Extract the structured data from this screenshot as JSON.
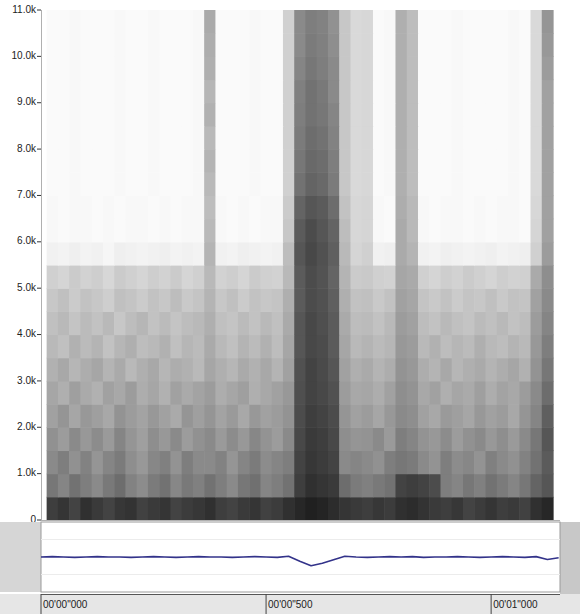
{
  "chart_data": [
    {
      "type": "heatmap",
      "color": "#141414",
      "tick_labels": "y",
      "xlim": [
        0,
        1.153
      ],
      "ylim": [
        0,
        11000
      ],
      "yticks": [
        0,
        {
          "value": 1000,
          "label": "1.0k"
        },
        {
          "value": 2000,
          "label": "2.0k"
        },
        {
          "value": 3000,
          "label": "3.0k"
        },
        {
          "value": 4000,
          "label": "4.0k"
        },
        {
          "value": 5000,
          "label": "5.0k"
        },
        {
          "value": 6000,
          "label": "6.0k"
        },
        {
          "value": 7000,
          "label": "7.0k"
        },
        {
          "value": 8000,
          "label": "8.0k"
        },
        {
          "value": 9000,
          "label": "9.0k"
        },
        {
          "value": 10000,
          "label": "10.0k"
        },
        {
          "value": 11000,
          "label": "11.0k"
        }
      ],
      "x": [
        0.025,
        0.05,
        0.075,
        0.1,
        0.125,
        0.15,
        0.175,
        0.2,
        0.225,
        0.25,
        0.275,
        0.3,
        0.325,
        0.35,
        0.375,
        0.4,
        0.425,
        0.45,
        0.475,
        0.5,
        0.525,
        0.55,
        0.575,
        0.6,
        0.625,
        0.65,
        0.675,
        0.7,
        0.725,
        0.75,
        0.775,
        0.8,
        0.825,
        0.85,
        0.875,
        0.9,
        0.925,
        0.95,
        0.975,
        1.0,
        1.025,
        1.05,
        1.075,
        1.1,
        1.125
      ],
      "y": [
        250,
        750,
        1250,
        1750,
        2250,
        2750,
        3250,
        3750,
        4250,
        4750,
        5250,
        5750,
        6250,
        6750,
        7250,
        7750,
        8250,
        8750,
        9250,
        9750,
        10250,
        10750
      ],
      "values": [
        [
          0.82,
          0.86,
          0.8,
          0.88,
          0.84,
          0.8,
          0.85,
          0.87,
          0.81,
          0.84,
          0.86,
          0.8,
          0.83,
          0.85,
          0.88,
          0.82,
          0.8,
          0.84,
          0.86,
          0.81,
          0.83,
          0.88,
          0.92,
          0.95,
          0.93,
          0.9,
          0.86,
          0.84,
          0.82,
          0.85,
          0.83,
          0.88,
          0.9,
          0.87,
          0.84,
          0.82,
          0.85,
          0.8,
          0.83,
          0.86,
          0.82,
          0.84,
          0.81,
          0.88,
          0.92
        ],
        [
          0.58,
          0.52,
          0.6,
          0.55,
          0.5,
          0.57,
          0.62,
          0.53,
          0.49,
          0.56,
          0.6,
          0.51,
          0.57,
          0.54,
          0.6,
          0.55,
          0.5,
          0.58,
          0.61,
          0.52,
          0.55,
          0.6,
          0.82,
          0.88,
          0.86,
          0.84,
          0.62,
          0.56,
          0.54,
          0.57,
          0.6,
          0.8,
          0.82,
          0.8,
          0.76,
          0.55,
          0.52,
          0.58,
          0.54,
          0.6,
          0.56,
          0.52,
          0.58,
          0.66,
          0.72
        ],
        [
          0.5,
          0.55,
          0.47,
          0.53,
          0.45,
          0.52,
          0.56,
          0.48,
          0.44,
          0.51,
          0.54,
          0.46,
          0.55,
          0.5,
          0.5,
          0.53,
          0.45,
          0.52,
          0.56,
          0.49,
          0.52,
          0.55,
          0.8,
          0.85,
          0.83,
          0.8,
          0.5,
          0.52,
          0.5,
          0.47,
          0.55,
          0.58,
          0.56,
          0.5,
          0.46,
          0.55,
          0.49,
          0.51,
          0.46,
          0.54,
          0.5,
          0.47,
          0.53,
          0.6,
          0.7
        ],
        [
          0.47,
          0.42,
          0.5,
          0.44,
          0.49,
          0.43,
          0.52,
          0.45,
          0.41,
          0.48,
          0.44,
          0.5,
          0.42,
          0.47,
          0.5,
          0.43,
          0.49,
          0.44,
          0.51,
          0.46,
          0.42,
          0.5,
          0.78,
          0.84,
          0.82,
          0.78,
          0.48,
          0.45,
          0.46,
          0.5,
          0.43,
          0.55,
          0.52,
          0.46,
          0.44,
          0.49,
          0.42,
          0.47,
          0.5,
          0.44,
          0.48,
          0.43,
          0.5,
          0.58,
          0.72
        ],
        [
          0.4,
          0.45,
          0.38,
          0.44,
          0.41,
          0.37,
          0.46,
          0.42,
          0.39,
          0.44,
          0.4,
          0.36,
          0.45,
          0.41,
          0.45,
          0.39,
          0.43,
          0.37,
          0.44,
          0.4,
          0.42,
          0.46,
          0.76,
          0.82,
          0.8,
          0.76,
          0.45,
          0.4,
          0.42,
          0.38,
          0.44,
          0.5,
          0.48,
          0.4,
          0.37,
          0.43,
          0.41,
          0.38,
          0.44,
          0.4,
          0.42,
          0.37,
          0.45,
          0.52,
          0.68
        ],
        [
          0.38,
          0.34,
          0.41,
          0.36,
          0.33,
          0.4,
          0.37,
          0.42,
          0.35,
          0.38,
          0.33,
          0.4,
          0.36,
          0.39,
          0.42,
          0.35,
          0.38,
          0.41,
          0.34,
          0.37,
          0.4,
          0.44,
          0.75,
          0.8,
          0.78,
          0.74,
          0.42,
          0.37,
          0.38,
          0.35,
          0.4,
          0.48,
          0.46,
          0.37,
          0.4,
          0.34,
          0.38,
          0.36,
          0.41,
          0.35,
          0.39,
          0.37,
          0.42,
          0.5,
          0.62
        ],
        [
          0.33,
          0.37,
          0.31,
          0.35,
          0.38,
          0.32,
          0.36,
          0.3,
          0.34,
          0.37,
          0.31,
          0.35,
          0.33,
          0.3,
          0.38,
          0.34,
          0.31,
          0.36,
          0.33,
          0.37,
          0.32,
          0.4,
          0.74,
          0.8,
          0.77,
          0.72,
          0.4,
          0.34,
          0.36,
          0.32,
          0.35,
          0.46,
          0.44,
          0.35,
          0.32,
          0.37,
          0.31,
          0.34,
          0.36,
          0.32,
          0.35,
          0.38,
          0.33,
          0.46,
          0.58
        ],
        [
          0.3,
          0.27,
          0.33,
          0.29,
          0.32,
          0.26,
          0.31,
          0.34,
          0.28,
          0.3,
          0.33,
          0.27,
          0.31,
          0.29,
          0.36,
          0.3,
          0.27,
          0.32,
          0.29,
          0.33,
          0.28,
          0.38,
          0.72,
          0.78,
          0.76,
          0.7,
          0.38,
          0.3,
          0.32,
          0.29,
          0.31,
          0.44,
          0.42,
          0.3,
          0.33,
          0.28,
          0.31,
          0.29,
          0.34,
          0.3,
          0.28,
          0.32,
          0.3,
          0.44,
          0.55
        ],
        [
          0.27,
          0.3,
          0.25,
          0.29,
          0.26,
          0.3,
          0.24,
          0.28,
          0.31,
          0.26,
          0.29,
          0.25,
          0.28,
          0.3,
          0.34,
          0.27,
          0.25,
          0.29,
          0.26,
          0.3,
          0.27,
          0.36,
          0.72,
          0.78,
          0.75,
          0.7,
          0.36,
          0.28,
          0.29,
          0.26,
          0.3,
          0.42,
          0.4,
          0.28,
          0.26,
          0.3,
          0.27,
          0.25,
          0.29,
          0.27,
          0.3,
          0.26,
          0.28,
          0.42,
          0.52
        ],
        [
          0.24,
          0.27,
          0.22,
          0.26,
          0.24,
          0.21,
          0.27,
          0.25,
          0.22,
          0.26,
          0.24,
          0.28,
          0.23,
          0.25,
          0.32,
          0.24,
          0.27,
          0.22,
          0.26,
          0.24,
          0.25,
          0.34,
          0.7,
          0.76,
          0.74,
          0.68,
          0.34,
          0.26,
          0.27,
          0.23,
          0.26,
          0.4,
          0.38,
          0.25,
          0.23,
          0.26,
          0.22,
          0.25,
          0.24,
          0.27,
          0.23,
          0.26,
          0.25,
          0.4,
          0.5
        ],
        [
          0.2,
          0.18,
          0.22,
          0.19,
          0.21,
          0.17,
          0.22,
          0.2,
          0.18,
          0.21,
          0.19,
          0.22,
          0.18,
          0.2,
          0.3,
          0.19,
          0.21,
          0.18,
          0.22,
          0.2,
          0.19,
          0.3,
          0.7,
          0.76,
          0.73,
          0.66,
          0.32,
          0.22,
          0.23,
          0.2,
          0.19,
          0.38,
          0.36,
          0.2,
          0.18,
          0.21,
          0.19,
          0.22,
          0.2,
          0.18,
          0.21,
          0.19,
          0.2,
          0.36,
          0.48
        ],
        [
          0.06,
          0.05,
          0.07,
          0.05,
          0.06,
          0.04,
          0.07,
          0.06,
          0.05,
          0.06,
          0.07,
          0.05,
          0.06,
          0.05,
          0.32,
          0.06,
          0.05,
          0.07,
          0.06,
          0.05,
          0.06,
          0.28,
          0.72,
          0.78,
          0.74,
          0.68,
          0.3,
          0.18,
          0.2,
          0.06,
          0.07,
          0.36,
          0.32,
          0.06,
          0.05,
          0.07,
          0.06,
          0.05,
          0.06,
          0.07,
          0.05,
          0.06,
          0.07,
          0.2,
          0.42
        ],
        [
          0.03,
          0.02,
          0.03,
          0.03,
          0.02,
          0.03,
          0.02,
          0.03,
          0.03,
          0.02,
          0.03,
          0.02,
          0.03,
          0.03,
          0.3,
          0.03,
          0.02,
          0.03,
          0.02,
          0.03,
          0.03,
          0.24,
          0.7,
          0.76,
          0.72,
          0.66,
          0.28,
          0.17,
          0.18,
          0.03,
          0.02,
          0.36,
          0.3,
          0.03,
          0.02,
          0.03,
          0.03,
          0.02,
          0.03,
          0.02,
          0.03,
          0.03,
          0.02,
          0.18,
          0.4
        ],
        [
          0.03,
          0.02,
          0.03,
          0.03,
          0.02,
          0.03,
          0.02,
          0.03,
          0.03,
          0.02,
          0.03,
          0.02,
          0.03,
          0.03,
          0.28,
          0.03,
          0.02,
          0.03,
          0.02,
          0.03,
          0.03,
          0.22,
          0.66,
          0.72,
          0.7,
          0.62,
          0.26,
          0.17,
          0.18,
          0.03,
          0.02,
          0.35,
          0.3,
          0.03,
          0.02,
          0.03,
          0.03,
          0.02,
          0.03,
          0.02,
          0.03,
          0.03,
          0.02,
          0.17,
          0.4
        ],
        [
          0.02,
          0.02,
          0.03,
          0.02,
          0.02,
          0.02,
          0.03,
          0.02,
          0.02,
          0.03,
          0.02,
          0.02,
          0.02,
          0.03,
          0.3,
          0.02,
          0.02,
          0.02,
          0.03,
          0.02,
          0.02,
          0.2,
          0.6,
          0.66,
          0.64,
          0.56,
          0.24,
          0.16,
          0.17,
          0.02,
          0.03,
          0.34,
          0.28,
          0.02,
          0.02,
          0.02,
          0.03,
          0.02,
          0.02,
          0.02,
          0.02,
          0.03,
          0.02,
          0.16,
          0.4
        ],
        [
          0.02,
          0.02,
          0.03,
          0.02,
          0.02,
          0.02,
          0.03,
          0.02,
          0.02,
          0.03,
          0.02,
          0.02,
          0.02,
          0.03,
          0.32,
          0.02,
          0.02,
          0.02,
          0.03,
          0.02,
          0.02,
          0.2,
          0.58,
          0.64,
          0.62,
          0.55,
          0.24,
          0.16,
          0.17,
          0.02,
          0.03,
          0.34,
          0.28,
          0.02,
          0.02,
          0.02,
          0.03,
          0.02,
          0.02,
          0.02,
          0.02,
          0.03,
          0.02,
          0.16,
          0.4
        ],
        [
          0.02,
          0.02,
          0.03,
          0.02,
          0.02,
          0.02,
          0.03,
          0.02,
          0.02,
          0.03,
          0.02,
          0.02,
          0.02,
          0.03,
          0.3,
          0.02,
          0.02,
          0.02,
          0.03,
          0.02,
          0.02,
          0.2,
          0.56,
          0.62,
          0.6,
          0.53,
          0.24,
          0.16,
          0.17,
          0.02,
          0.03,
          0.34,
          0.28,
          0.02,
          0.02,
          0.02,
          0.03,
          0.02,
          0.02,
          0.02,
          0.02,
          0.03,
          0.02,
          0.16,
          0.4
        ],
        [
          0.02,
          0.02,
          0.03,
          0.02,
          0.02,
          0.02,
          0.03,
          0.02,
          0.02,
          0.03,
          0.02,
          0.02,
          0.02,
          0.03,
          0.33,
          0.02,
          0.02,
          0.02,
          0.03,
          0.02,
          0.02,
          0.2,
          0.55,
          0.6,
          0.58,
          0.52,
          0.24,
          0.16,
          0.17,
          0.02,
          0.03,
          0.34,
          0.28,
          0.02,
          0.02,
          0.02,
          0.03,
          0.02,
          0.02,
          0.02,
          0.02,
          0.03,
          0.02,
          0.16,
          0.4
        ],
        [
          0.02,
          0.02,
          0.03,
          0.02,
          0.02,
          0.02,
          0.03,
          0.02,
          0.02,
          0.03,
          0.02,
          0.02,
          0.02,
          0.03,
          0.31,
          0.02,
          0.02,
          0.02,
          0.03,
          0.02,
          0.02,
          0.2,
          0.54,
          0.6,
          0.57,
          0.5,
          0.24,
          0.16,
          0.17,
          0.02,
          0.03,
          0.34,
          0.28,
          0.02,
          0.02,
          0.02,
          0.03,
          0.02,
          0.02,
          0.02,
          0.02,
          0.03,
          0.02,
          0.16,
          0.4
        ],
        [
          0.02,
          0.02,
          0.03,
          0.02,
          0.02,
          0.02,
          0.03,
          0.02,
          0.02,
          0.03,
          0.02,
          0.02,
          0.02,
          0.03,
          0.34,
          0.02,
          0.02,
          0.02,
          0.03,
          0.02,
          0.02,
          0.2,
          0.52,
          0.58,
          0.55,
          0.5,
          0.24,
          0.16,
          0.17,
          0.02,
          0.03,
          0.34,
          0.28,
          0.02,
          0.02,
          0.02,
          0.03,
          0.02,
          0.02,
          0.02,
          0.02,
          0.03,
          0.02,
          0.16,
          0.42
        ],
        [
          0.02,
          0.02,
          0.03,
          0.02,
          0.02,
          0.02,
          0.03,
          0.02,
          0.02,
          0.03,
          0.02,
          0.02,
          0.02,
          0.03,
          0.35,
          0.02,
          0.02,
          0.02,
          0.03,
          0.02,
          0.02,
          0.2,
          0.5,
          0.56,
          0.54,
          0.48,
          0.24,
          0.16,
          0.17,
          0.02,
          0.03,
          0.34,
          0.28,
          0.02,
          0.02,
          0.02,
          0.03,
          0.02,
          0.02,
          0.02,
          0.02,
          0.03,
          0.02,
          0.16,
          0.44
        ],
        [
          0.02,
          0.02,
          0.03,
          0.02,
          0.02,
          0.02,
          0.03,
          0.02,
          0.02,
          0.03,
          0.02,
          0.02,
          0.02,
          0.03,
          0.36,
          0.02,
          0.02,
          0.02,
          0.03,
          0.02,
          0.02,
          0.2,
          0.5,
          0.55,
          0.53,
          0.47,
          0.24,
          0.16,
          0.17,
          0.02,
          0.03,
          0.34,
          0.28,
          0.02,
          0.02,
          0.02,
          0.03,
          0.02,
          0.02,
          0.02,
          0.02,
          0.03,
          0.02,
          0.16,
          0.45
        ]
      ]
    },
    {
      "type": "line",
      "color": "#33338a",
      "tick_labels": "x",
      "xlim": [
        0,
        1.153
      ],
      "ylim": [
        -1,
        1
      ],
      "xticks": [
        {
          "value": 0,
          "label": "00'00\"000"
        },
        {
          "value": 0.5,
          "label": "00'00\"500"
        },
        {
          "value": 1,
          "label": "00'01\"000"
        }
      ],
      "x": [
        0,
        0.025,
        0.05,
        0.075,
        0.1,
        0.125,
        0.15,
        0.175,
        0.2,
        0.225,
        0.25,
        0.275,
        0.3,
        0.325,
        0.35,
        0.375,
        0.4,
        0.425,
        0.45,
        0.475,
        0.5,
        0.525,
        0.55,
        0.575,
        0.6,
        0.625,
        0.65,
        0.675,
        0.7,
        0.725,
        0.75,
        0.775,
        0.8,
        0.825,
        0.85,
        0.875,
        0.9,
        0.925,
        0.95,
        0.975,
        1.0,
        1.025,
        1.05,
        1.075,
        1.1,
        1.125,
        1.15
      ],
      "values": [
        0,
        0.01,
        0,
        -0.01,
        0,
        0.01,
        0,
        0,
        -0.01,
        0,
        0.01,
        0,
        -0.01,
        0,
        0.01,
        0,
        0,
        -0.01,
        0,
        0.01,
        0,
        -0.01,
        0.02,
        -0.12,
        -0.25,
        -0.18,
        -0.08,
        0.02,
        0,
        -0.01,
        0,
        0.01,
        0,
        0.01,
        -0.01,
        0,
        0,
        0.01,
        0,
        -0.01,
        0,
        0.01,
        0,
        -0.01,
        0.01,
        -0.07,
        -0.02
      ]
    }
  ]
}
